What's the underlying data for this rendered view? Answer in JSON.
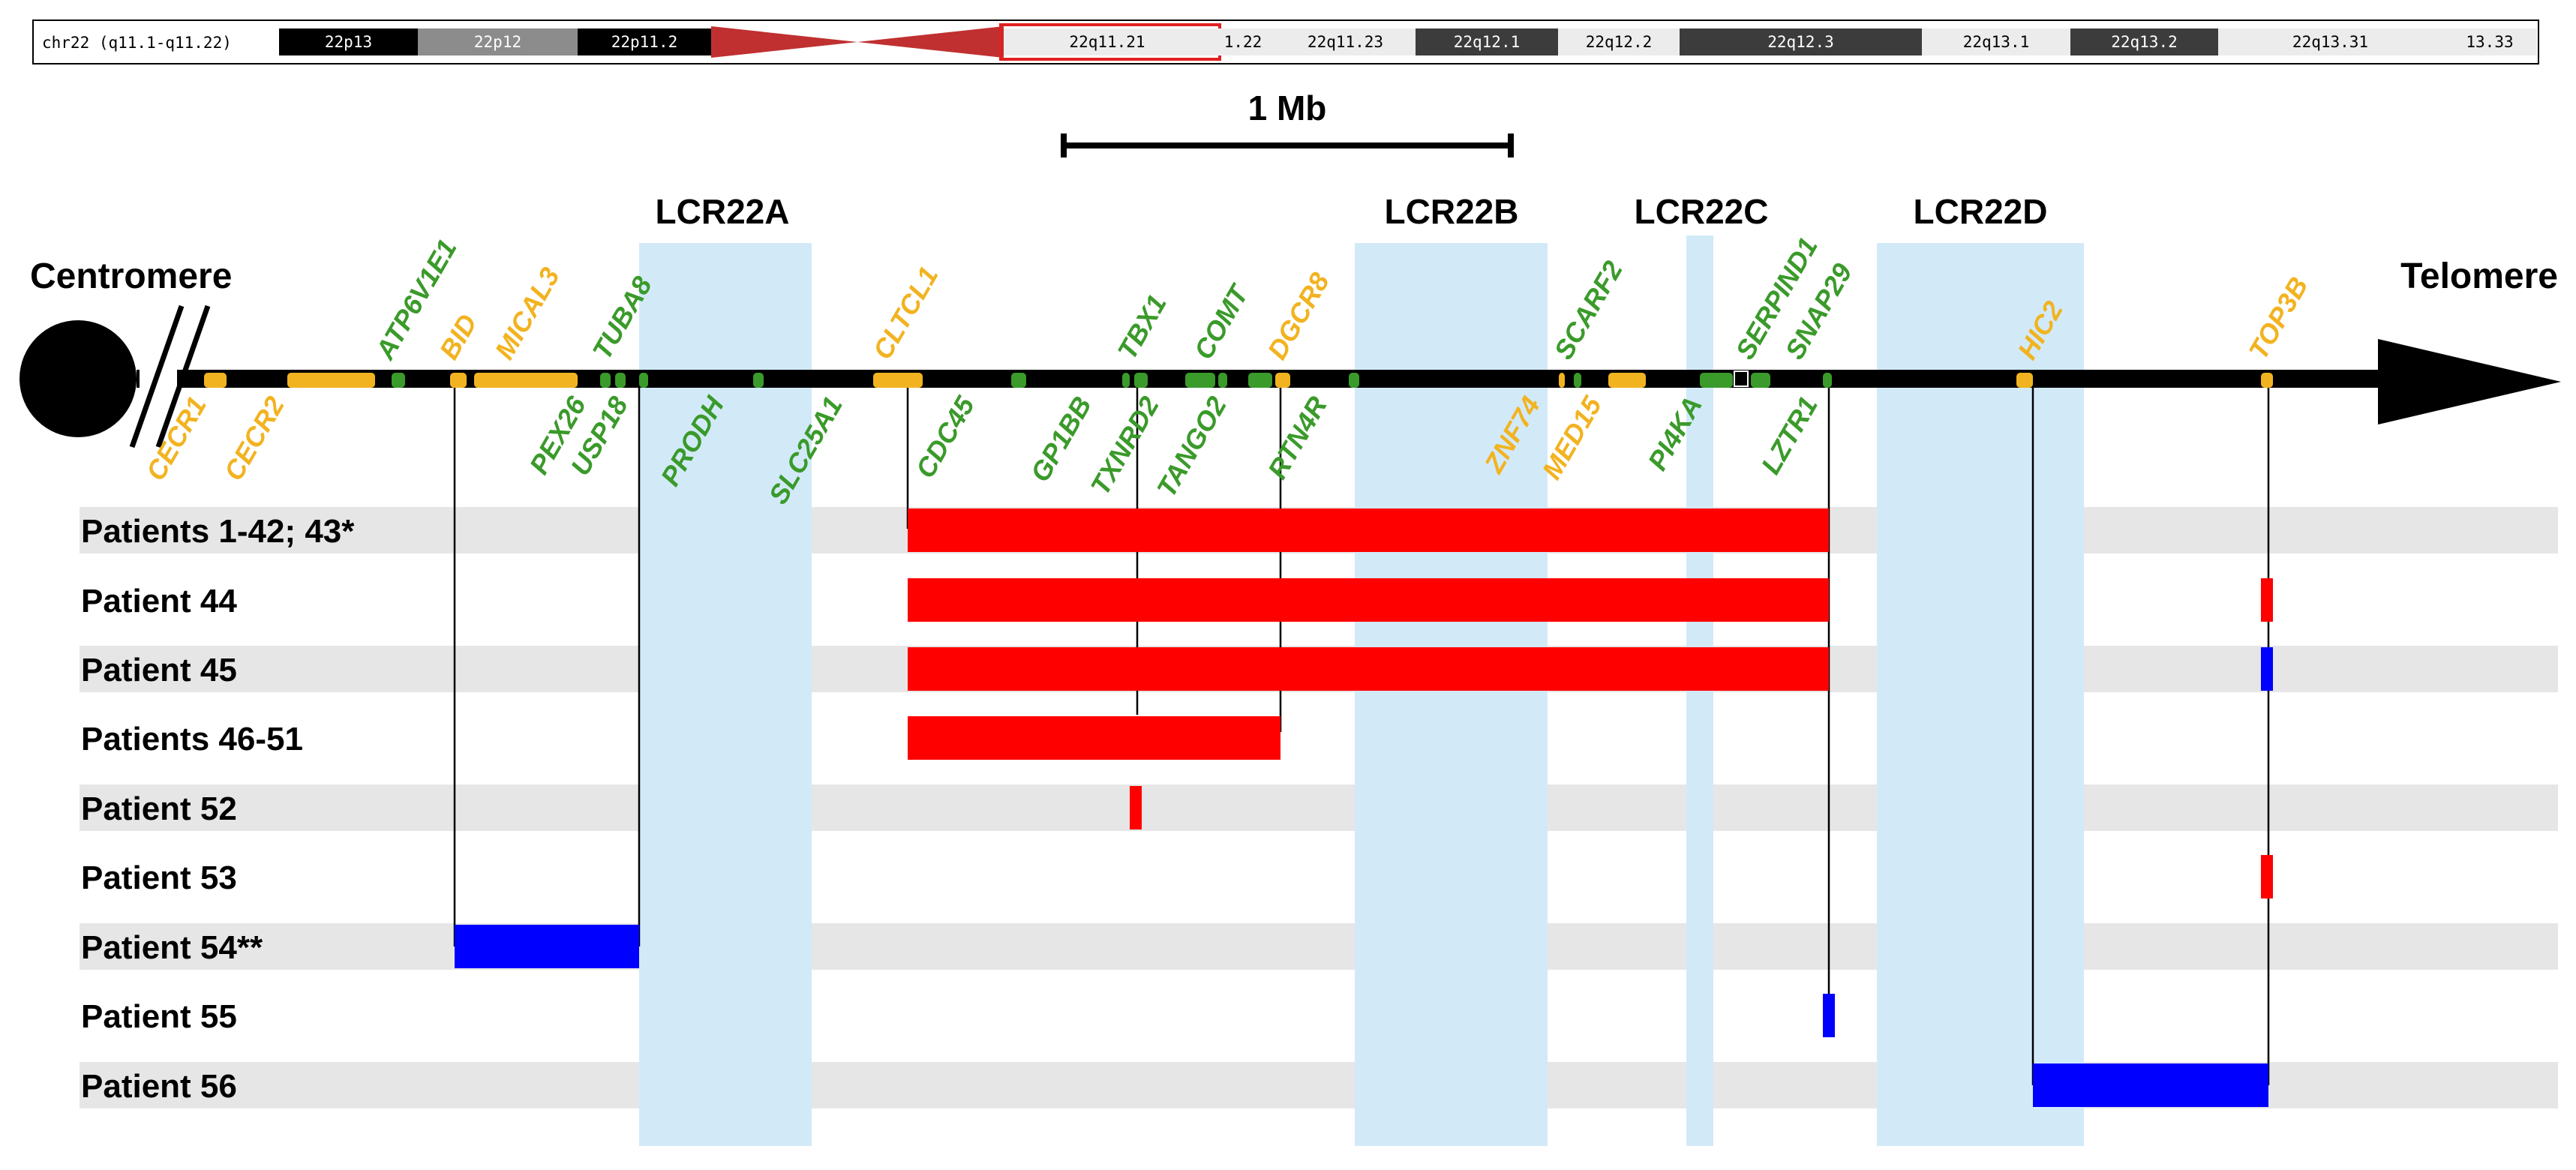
{
  "ideogram": {
    "label": "chr22 (q11.1-q11.22)",
    "bands": [
      {
        "name": "22p13",
        "shade": "black"
      },
      {
        "name": "22p12",
        "shade": "gray"
      },
      {
        "name": "22p11.2",
        "shade": "black"
      },
      {
        "name": "",
        "shade": "centromere"
      },
      {
        "name": "22q11.21",
        "shade": "white"
      },
      {
        "name": "1.22",
        "shade": "white"
      },
      {
        "name": "22q11.23",
        "shade": "white"
      },
      {
        "name": "22q12.1",
        "shade": "dark"
      },
      {
        "name": "22q12.2",
        "shade": "white"
      },
      {
        "name": "22q12.3",
        "shade": "dark"
      },
      {
        "name": "22q13.1",
        "shade": "white"
      },
      {
        "name": "22q13.2",
        "shade": "dark"
      },
      {
        "name": "22q13.31",
        "shade": "white"
      },
      {
        "name": "13.33",
        "shade": "white"
      }
    ],
    "highlight_band": "22q11.21"
  },
  "scale_bar": {
    "label": "1 Mb"
  },
  "ends": {
    "left": "Centromere",
    "right": "Telomere"
  },
  "lcr_regions": [
    {
      "name": "LCR22A"
    },
    {
      "name": "LCR22B"
    },
    {
      "name": "LCR22C"
    },
    {
      "name": "LCR22D"
    }
  ],
  "colors": {
    "gene_green": "#3a9a2a",
    "gene_orange": "#f2b320",
    "deletion": "#ff0000",
    "duplication": "#0000ff",
    "lcr": "#d2eaf8",
    "row_stripe": "#e6e6e6",
    "chromosome": "#000000",
    "highlight_box": "#e02020",
    "centromere_band": "#c03030"
  },
  "genes_above": [
    {
      "name": "ATP6V1E1",
      "color": "green"
    },
    {
      "name": "BID",
      "color": "orange"
    },
    {
      "name": "MICAL3",
      "color": "orange"
    },
    {
      "name": "TUBA8",
      "color": "green"
    },
    {
      "name": "CLTCL1",
      "color": "orange"
    },
    {
      "name": "TBX1",
      "color": "green"
    },
    {
      "name": "COMT",
      "color": "green"
    },
    {
      "name": "DGCR8",
      "color": "orange"
    },
    {
      "name": "SCARF2",
      "color": "green"
    },
    {
      "name": "SERPIND1",
      "color": "green"
    },
    {
      "name": "SNAP29",
      "color": "green"
    },
    {
      "name": "HIC2",
      "color": "orange"
    },
    {
      "name": "TOP3B",
      "color": "orange"
    }
  ],
  "genes_below": [
    {
      "name": "CECR1",
      "color": "orange"
    },
    {
      "name": "CECR2",
      "color": "orange"
    },
    {
      "name": "PEX26",
      "color": "green"
    },
    {
      "name": "USP18",
      "color": "green"
    },
    {
      "name": "PRODH",
      "color": "green"
    },
    {
      "name": "SLC25A1",
      "color": "green"
    },
    {
      "name": "CDC45",
      "color": "green"
    },
    {
      "name": "GP1BB",
      "color": "green"
    },
    {
      "name": "TXNRD2",
      "color": "green"
    },
    {
      "name": "TANGO2",
      "color": "green"
    },
    {
      "name": "RTN4R",
      "color": "green"
    },
    {
      "name": "ZNF74",
      "color": "orange"
    },
    {
      "name": "MED15",
      "color": "orange"
    },
    {
      "name": "PI4KA",
      "color": "green"
    },
    {
      "name": "LZTR1",
      "color": "green"
    }
  ],
  "patients": [
    {
      "label": "Patients 1-42; 43*",
      "events": [
        {
          "type": "deletion"
        }
      ]
    },
    {
      "label": "Patient 44",
      "events": [
        {
          "type": "deletion"
        },
        {
          "type": "deletion"
        }
      ]
    },
    {
      "label": "Patient 45",
      "events": [
        {
          "type": "deletion"
        },
        {
          "type": "duplication"
        }
      ]
    },
    {
      "label": "Patients 46-51",
      "events": [
        {
          "type": "deletion"
        }
      ]
    },
    {
      "label": "Patient 52",
      "events": [
        {
          "type": "deletion"
        }
      ]
    },
    {
      "label": "Patient 53",
      "events": [
        {
          "type": "deletion"
        }
      ]
    },
    {
      "label": "Patient 54**",
      "events": [
        {
          "type": "duplication"
        }
      ]
    },
    {
      "label": "Patient 55",
      "events": [
        {
          "type": "duplication"
        }
      ]
    },
    {
      "label": "Patient 56",
      "events": [
        {
          "type": "duplication"
        }
      ]
    }
  ]
}
